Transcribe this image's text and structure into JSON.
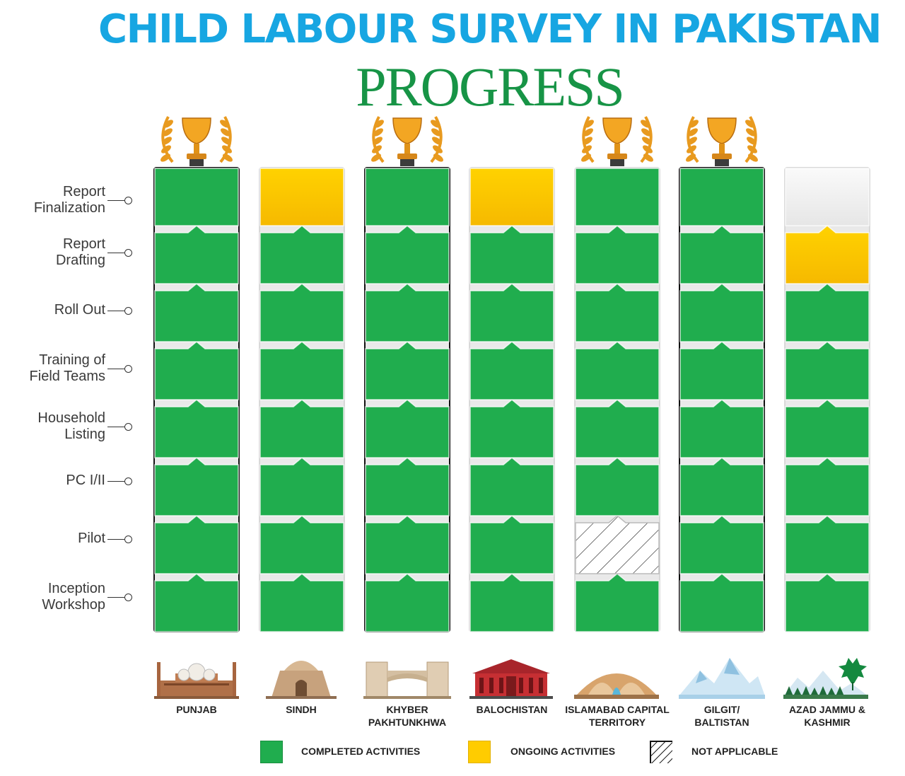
{
  "title": "CHILD LABOUR SURVEY IN PAKISTAN",
  "subtitle": "PROGRESS",
  "stages": [
    [
      "Report",
      "Finalization"
    ],
    [
      "Report",
      "Drafting"
    ],
    [
      "Roll Out"
    ],
    [
      "Training of",
      "Field Teams"
    ],
    [
      "Household",
      "Listing"
    ],
    [
      "PC I/II"
    ],
    [
      "Pilot"
    ],
    [
      "Inception",
      "Workshop"
    ]
  ],
  "legend": {
    "completed": "COMPLETED ACTIVITIES",
    "ongoing": "ONGOING ACTIVITIES",
    "na": "NOT APPLICABLE"
  },
  "colors": {
    "completed": "#20ad4e",
    "ongoing": "#ffcc00",
    "not_applicable": "#ffffff",
    "pending": "#ffffff",
    "trophy": "#e89a1f"
  },
  "chart_data": {
    "type": "table",
    "title": "CHILD LABOUR SURVEY IN PAKISTAN",
    "subtitle": "PROGRESS",
    "stages_bottom_to_top": [
      "Inception Workshop",
      "Pilot",
      "PC I/II",
      "Household Listing",
      "Training of Field Teams",
      "Roll Out",
      "Report Drafting",
      "Report Finalization"
    ],
    "regions": [
      {
        "name": [
          "PUNJAB"
        ],
        "icon": "badshahi-mosque-icon",
        "trophy": true,
        "status": [
          "completed",
          "completed",
          "completed",
          "completed",
          "completed",
          "completed",
          "completed",
          "completed"
        ]
      },
      {
        "name": [
          "SINDH"
        ],
        "icon": "mazar-e-quaid-icon",
        "trophy": false,
        "status": [
          "completed",
          "completed",
          "completed",
          "completed",
          "completed",
          "completed",
          "completed",
          "ongoing"
        ]
      },
      {
        "name": [
          "KHYBER",
          "PAKHTUNKHWA"
        ],
        "icon": "bab-e-khyber-icon",
        "trophy": true,
        "status": [
          "completed",
          "completed",
          "completed",
          "completed",
          "completed",
          "completed",
          "completed",
          "completed"
        ]
      },
      {
        "name": [
          "BALOCHISTAN"
        ],
        "icon": "balochistan-building-icon",
        "trophy": false,
        "status": [
          "completed",
          "completed",
          "completed",
          "completed",
          "completed",
          "completed",
          "completed",
          "ongoing"
        ]
      },
      {
        "name": [
          "ISLAMABAD CAPITAL",
          "TERRITORY"
        ],
        "icon": "pakistan-monument-icon",
        "trophy": true,
        "status": [
          "completed",
          "not_applicable",
          "completed",
          "completed",
          "completed",
          "completed",
          "completed",
          "completed"
        ]
      },
      {
        "name": [
          "GILGIT/",
          "BALTISTAN"
        ],
        "icon": "mountains-icon",
        "trophy": true,
        "status": [
          "completed",
          "completed",
          "completed",
          "completed",
          "completed",
          "completed",
          "completed",
          "completed"
        ]
      },
      {
        "name": [
          "AZAD JAMMU &",
          "KASHMIR"
        ],
        "icon": "mountains-maple-icon",
        "trophy": false,
        "status": [
          "completed",
          "completed",
          "completed",
          "completed",
          "completed",
          "completed",
          "ongoing",
          "pending"
        ]
      }
    ],
    "legend": [
      "COMPLETED ACTIVITIES",
      "ONGOING ACTIVITIES",
      "NOT APPLICABLE"
    ]
  }
}
